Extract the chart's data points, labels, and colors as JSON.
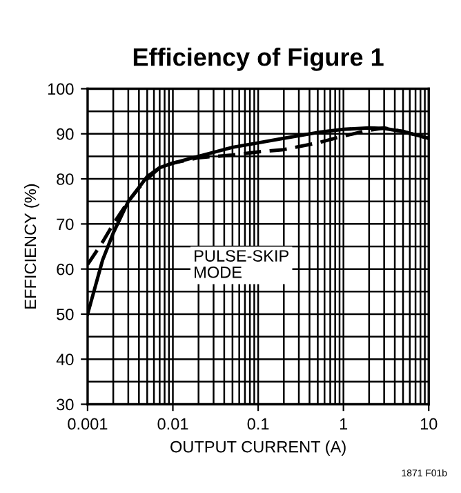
{
  "chart_data": {
    "type": "line",
    "title": "Efficiency of Figure 1",
    "xlabel": "OUTPUT CURRENT (A)",
    "ylabel": "EFFICIENCY (%)",
    "log": "x",
    "xlim": [
      0.001,
      10
    ],
    "xticks": [
      0.001,
      0.01,
      0.1,
      1,
      10
    ],
    "ylim": [
      30,
      100
    ],
    "yticks": [
      30,
      40,
      50,
      60,
      70,
      80,
      90,
      100
    ],
    "grid": true,
    "legend": false,
    "marker": "none",
    "series": [
      {
        "name": "PULSE-SKIP\nMODE",
        "color": "#000000",
        "line_style": "solid",
        "x": [
          0.001,
          0.0015,
          0.002,
          0.003,
          0.005,
          0.007,
          0.01,
          0.02,
          0.05,
          0.1,
          0.2,
          0.5,
          1,
          2,
          3,
          5,
          10
        ],
        "values": [
          50,
          62,
          68,
          75,
          80.5,
          82.5,
          83.5,
          85,
          87,
          88,
          89,
          90.3,
          91,
          91.3,
          91.2,
          90.5,
          89
        ]
      },
      {
        "color": "#000000",
        "line_style": "dashed",
        "x": [
          0.001,
          0.0015,
          0.002,
          0.003,
          0.004,
          0.005,
          0.007,
          0.01,
          0.02,
          0.05,
          0.1,
          0.2,
          0.5,
          1,
          2,
          3,
          5,
          10
        ],
        "values": [
          61,
          66,
          70,
          75,
          78,
          80,
          82.5,
          83.5,
          84.7,
          85.3,
          86,
          86.5,
          88,
          89.5,
          90.8,
          91.3,
          90.5,
          89
        ]
      }
    ],
    "annotations": [
      "1871 F01b"
    ]
  }
}
